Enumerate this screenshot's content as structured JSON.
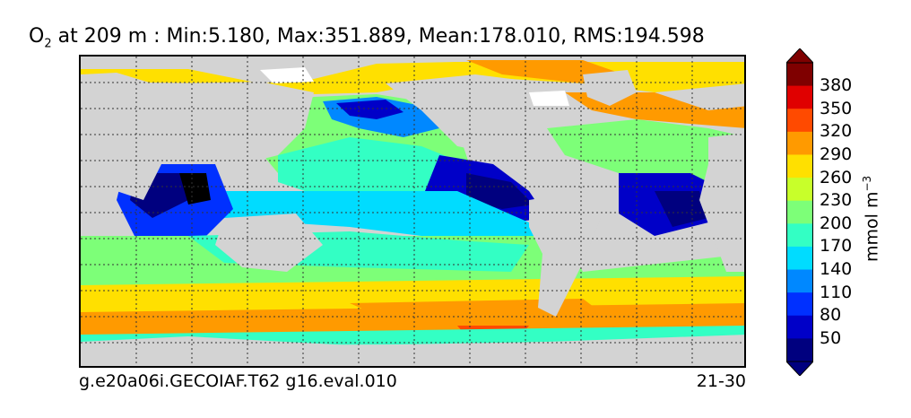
{
  "title": {
    "variable": "O",
    "subscript": "2",
    "text": " at 209 m : Min:5.180, Max:351.889, Mean:178.010, RMS:194.598"
  },
  "footer": {
    "case": "g.e20a06i.GECOIAF.T62 g16.eval.010",
    "years": "21-30"
  },
  "colorbar": {
    "unit": "mmol m",
    "unit_exp": "−3",
    "labels": [
      "380",
      "350",
      "320",
      "290",
      "260",
      "230",
      "200",
      "170",
      "140",
      "110",
      "80",
      "50"
    ],
    "colors": [
      "#7f0000",
      "#e00000",
      "#ff4a00",
      "#ff9a00",
      "#ffe000",
      "#c8ff2a",
      "#7dff78",
      "#33ffc4",
      "#00dcff",
      "#0088ff",
      "#0030ff",
      "#0000c8",
      "#00007f"
    ],
    "extend": "both"
  },
  "map": {
    "land_color": "#d3d3d3",
    "ice_color": "#ffffff",
    "grid": "dotted"
  }
}
